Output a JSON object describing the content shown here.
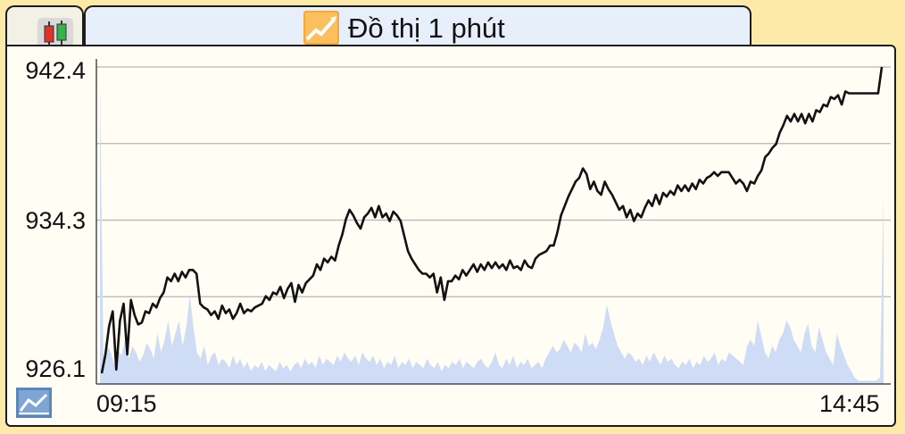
{
  "tab": {
    "title": "Đồ thị 1 phút"
  },
  "icons": {
    "candlestick": "candlestick-icon",
    "line_chart": "line-chart-icon",
    "mini_chart": "mini-line-chart-icon"
  },
  "colors": {
    "line": "#111111",
    "volume": "#cfdcf5",
    "grid": "#b5b5b5",
    "tab_bg": "#e7effa",
    "page_bg": "#fde9a8"
  },
  "chart_data": {
    "type": "line",
    "title": "",
    "xlabel": "",
    "ylabel": "",
    "y_ticks": [
      "942.4",
      "934.3",
      "926.1"
    ],
    "x_ticks": [
      "09:15",
      "14:45"
    ],
    "ylim": [
      926.1,
      942.4
    ],
    "grid": true,
    "price_series": [
      926.1,
      927.1,
      928.6,
      929.4,
      926.3,
      928.9,
      929.8,
      927.1,
      930.0,
      929.2,
      928.7,
      928.8,
      929.4,
      929.3,
      929.8,
      929.6,
      930.1,
      930.4,
      931.2,
      931.0,
      931.4,
      931.0,
      931.5,
      931.2,
      931.6,
      931.6,
      931.4,
      929.8,
      929.6,
      929.5,
      929.2,
      929.4,
      929.0,
      929.7,
      929.3,
      929.5,
      929.0,
      929.3,
      929.8,
      929.3,
      929.5,
      929.4,
      929.6,
      929.7,
      929.8,
      930.2,
      930.0,
      930.4,
      930.3,
      930.7,
      930.1,
      930.6,
      930.9,
      929.9,
      930.8,
      930.4,
      930.9,
      931.1,
      931.3,
      931.9,
      931.6,
      932.2,
      932.0,
      932.3,
      932.1,
      932.9,
      933.5,
      934.3,
      934.8,
      934.5,
      934.1,
      933.8,
      934.4,
      934.6,
      934.9,
      934.4,
      935.0,
      934.4,
      934.6,
      934.2,
      934.7,
      934.5,
      934.2,
      933.4,
      932.6,
      932.2,
      931.9,
      931.6,
      931.4,
      931.4,
      931.2,
      931.4,
      930.4,
      931.2,
      930.0,
      931.0,
      931.0,
      931.3,
      931.1,
      931.6,
      931.3,
      931.6,
      931.9,
      931.5,
      931.9,
      931.6,
      932.0,
      931.7,
      932.0,
      931.7,
      931.9,
      931.6,
      932.1,
      931.7,
      931.8,
      931.6,
      932.1,
      931.8,
      931.7,
      932.2,
      932.4,
      932.5,
      932.6,
      932.9,
      932.9,
      933.6,
      934.5,
      935.0,
      935.5,
      935.9,
      936.3,
      936.5,
      937.0,
      936.7,
      935.9,
      936.3,
      935.8,
      935.6,
      936.3,
      935.9,
      935.6,
      935.2,
      934.8,
      935.0,
      934.4,
      934.8,
      934.2,
      934.6,
      934.4,
      934.9,
      935.3,
      935.0,
      935.6,
      935.1,
      935.7,
      935.5,
      935.8,
      935.6,
      936.1,
      935.8,
      936.1,
      935.8,
      936.2,
      935.9,
      936.4,
      936.2,
      936.5,
      936.6,
      936.8,
      936.6,
      936.8,
      936.8,
      936.8,
      936.5,
      936.2,
      936.4,
      936.2,
      935.8,
      936.3,
      936.2,
      936.6,
      936.9,
      937.6,
      937.8,
      938.1,
      938.3,
      938.9,
      939.3,
      939.8,
      939.5,
      939.9,
      939.5,
      939.9,
      939.4,
      939.9,
      939.5,
      940.1,
      940.0,
      940.4,
      940.3,
      940.8,
      940.7,
      940.9,
      940.4,
      941.1,
      941.0,
      941.0,
      941.0,
      941.0,
      941.0,
      941.0,
      941.0,
      941.0,
      941.0,
      942.4
    ],
    "volume_series": [
      0.95,
      0.08,
      0.12,
      0.1,
      0.06,
      0.11,
      0.09,
      0.14,
      0.08,
      0.12,
      0.1,
      0.07,
      0.09,
      0.13,
      0.11,
      0.08,
      0.16,
      0.1,
      0.14,
      0.2,
      0.12,
      0.16,
      0.2,
      0.12,
      0.18,
      0.28,
      0.18,
      0.1,
      0.08,
      0.12,
      0.06,
      0.09,
      0.1,
      0.06,
      0.08,
      0.07,
      0.05,
      0.09,
      0.06,
      0.08,
      0.05,
      0.07,
      0.04,
      0.06,
      0.05,
      0.07,
      0.04,
      0.06,
      0.05,
      0.04,
      0.07,
      0.05,
      0.06,
      0.04,
      0.06,
      0.07,
      0.05,
      0.08,
      0.06,
      0.07,
      0.05,
      0.09,
      0.06,
      0.08,
      0.07,
      0.06,
      0.09,
      0.07,
      0.1,
      0.08,
      0.07,
      0.09,
      0.06,
      0.1,
      0.08,
      0.07,
      0.09,
      0.06,
      0.08,
      0.05,
      0.07,
      0.06,
      0.09,
      0.05,
      0.07,
      0.06,
      0.08,
      0.05,
      0.07,
      0.06,
      0.05,
      0.08,
      0.06,
      0.05,
      0.07,
      0.04,
      0.06,
      0.05,
      0.07,
      0.06,
      0.08,
      0.05,
      0.07,
      0.06,
      0.05,
      0.07,
      0.08,
      0.06,
      0.05,
      0.07,
      0.1,
      0.06,
      0.05,
      0.08,
      0.06,
      0.09,
      0.05,
      0.07,
      0.06,
      0.08,
      0.05,
      0.06,
      0.07,
      0.05,
      0.08,
      0.1,
      0.12,
      0.1,
      0.11,
      0.14,
      0.12,
      0.1,
      0.13,
      0.12,
      0.1,
      0.16,
      0.12,
      0.13,
      0.11,
      0.14,
      0.18,
      0.25,
      0.2,
      0.16,
      0.12,
      0.1,
      0.08,
      0.1,
      0.09,
      0.07,
      0.08,
      0.06,
      0.09,
      0.07,
      0.1,
      0.08,
      0.06,
      0.09,
      0.07,
      0.08,
      0.06,
      0.05,
      0.07,
      0.06,
      0.08,
      0.05,
      0.07,
      0.06,
      0.09,
      0.07,
      0.08,
      0.1,
      0.06,
      0.08,
      0.07,
      0.1,
      0.09,
      0.08,
      0.07,
      0.06,
      0.12,
      0.14,
      0.12,
      0.2,
      0.15,
      0.1,
      0.08,
      0.12,
      0.1,
      0.14,
      0.16,
      0.2,
      0.18,
      0.14,
      0.12,
      0.1,
      0.16,
      0.19,
      0.12,
      0.1,
      0.18,
      0.14,
      0.1,
      0.08,
      0.06,
      0.16,
      0.12,
      0.09,
      0.06,
      0.04,
      0.02,
      0.01,
      0.01,
      0.01,
      0.01,
      0.01,
      0.01,
      0.02,
      0.6
    ]
  }
}
